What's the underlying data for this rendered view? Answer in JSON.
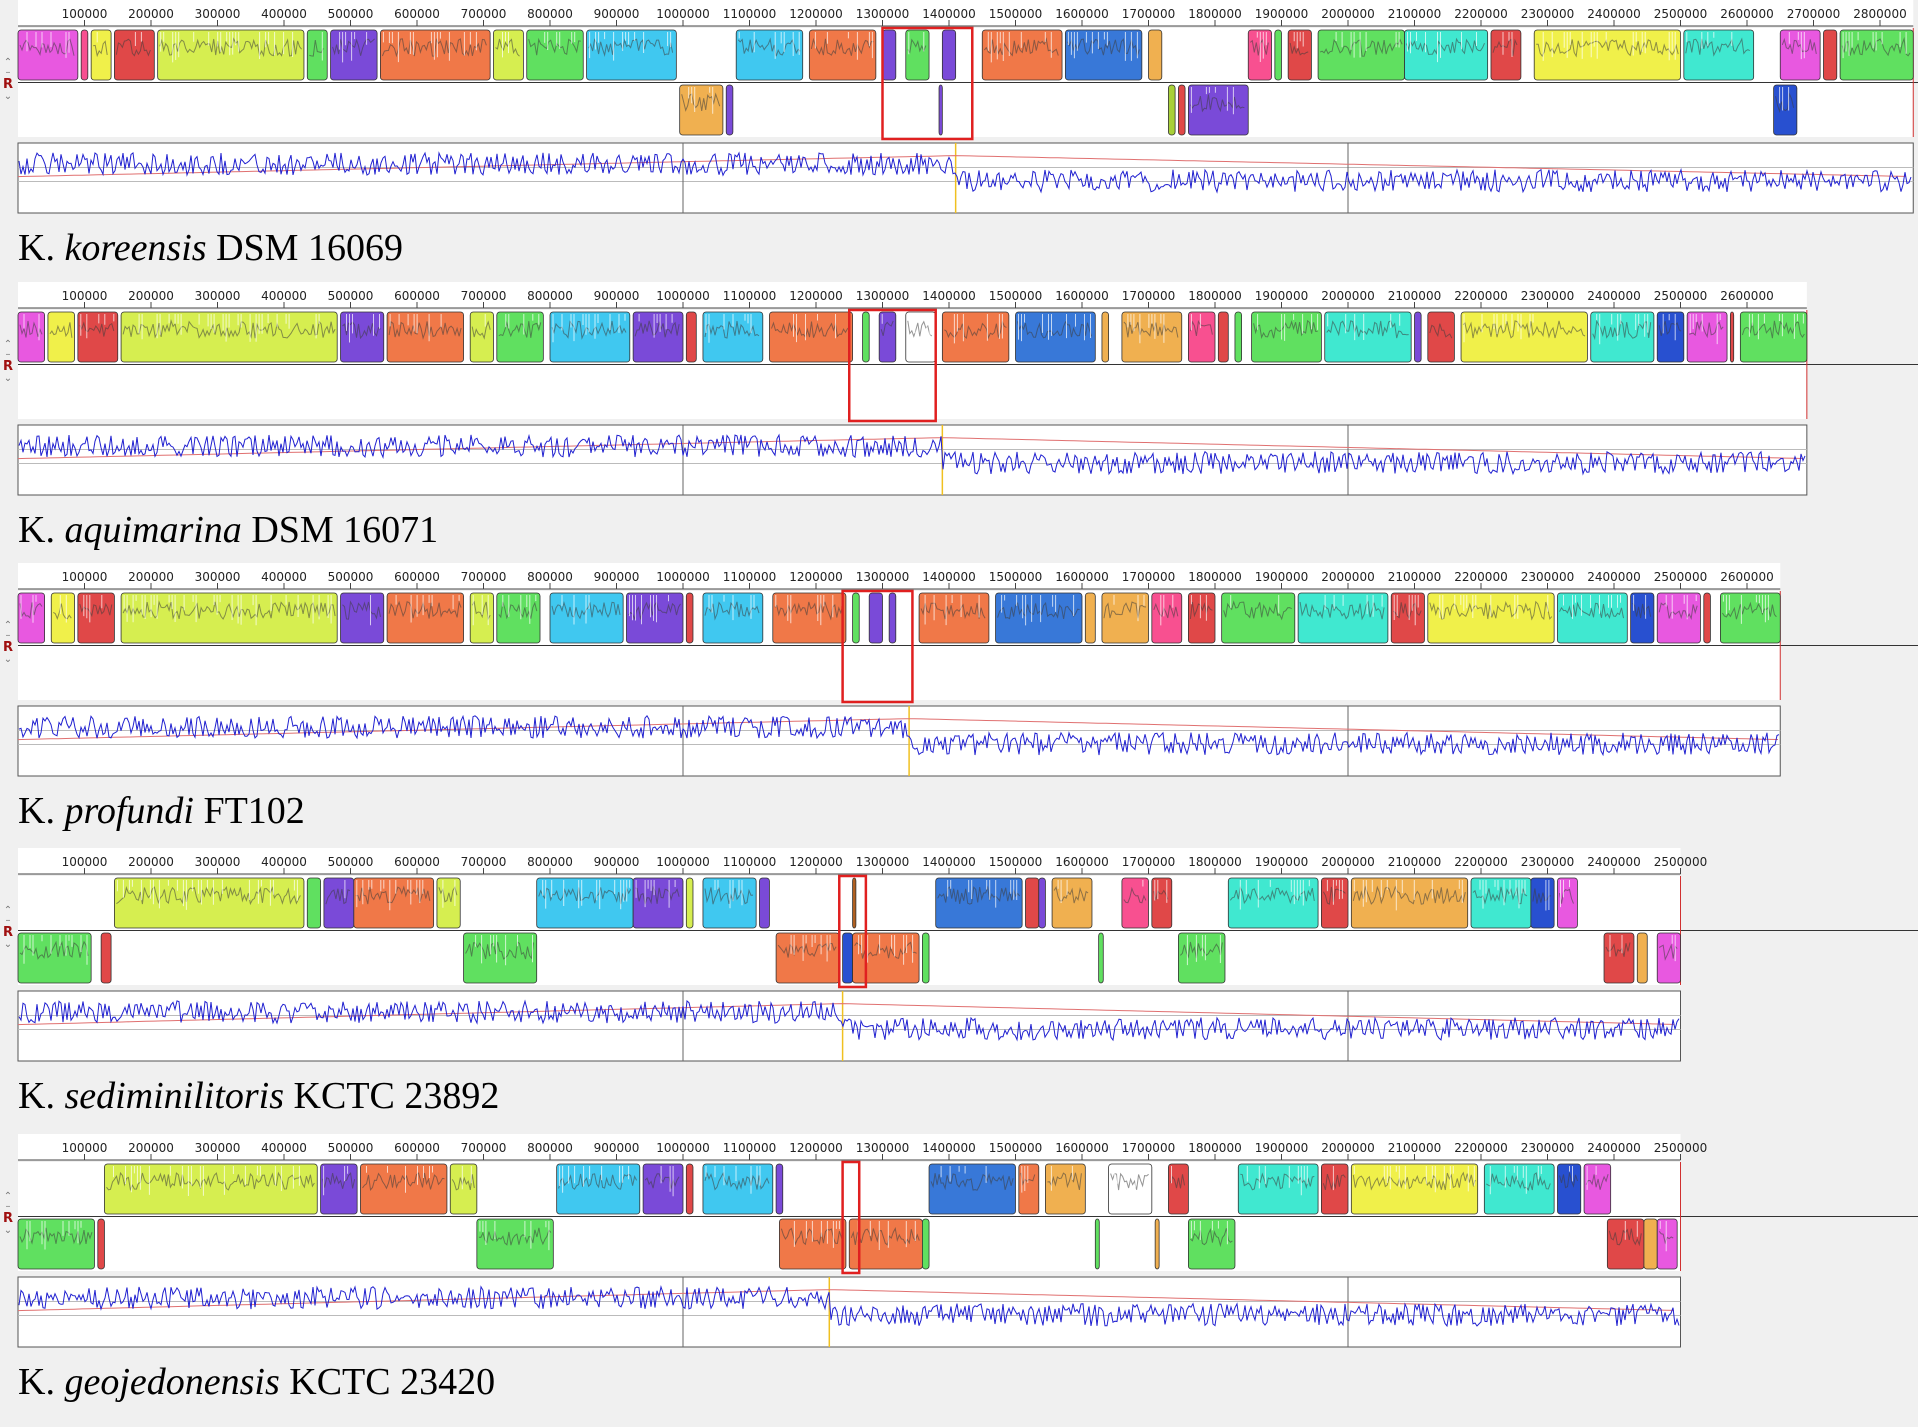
{
  "ui": {
    "reverse_label": "R",
    "up_glyph": "⌃",
    "minus_glyph": "–",
    "down_glyph": "⌄"
  },
  "chart_data": {
    "type": "genome-alignment",
    "palette": {
      "magenta": "#e858e0",
      "yellow": "#f0f04a",
      "red": "#e04848",
      "lime": "#d6ee50",
      "purple": "#7a4ad8",
      "orange": "#f07848",
      "green": "#60e060",
      "cyan": "#40c8f0",
      "blue": "#3878d8",
      "gold": "#f0b050",
      "teal": "#40e8d0",
      "olive": "#a8d038",
      "pink": "#f85090",
      "white": "#ffffff",
      "darkred": "#c02020",
      "brown": "#b06020",
      "navy": "#2850d0"
    },
    "tick_values": [
      100000,
      200000,
      300000,
      400000,
      500000,
      600000,
      700000,
      800000,
      900000,
      1000000,
      1100000,
      1200000,
      1300000,
      1400000,
      1500000,
      1600000,
      1700000,
      1800000,
      1900000,
      2000000,
      2100000,
      2200000,
      2300000,
      2400000,
      2500000,
      2600000,
      2700000,
      2800000
    ],
    "genomes": [
      {
        "genus": "K.",
        "species": "koreensis",
        "strain": "DSM 16069",
        "length": 2850000,
        "highlight": [
          1300000,
          1435000
        ],
        "marker": 1410000,
        "blocks_forward": [
          [
            0,
            90000,
            "magenta"
          ],
          [
            95000,
            105000,
            "pink"
          ],
          [
            110000,
            140000,
            "yellow"
          ],
          [
            145000,
            205000,
            "red"
          ],
          [
            210000,
            430000,
            "lime"
          ],
          [
            435000,
            465000,
            "green"
          ],
          [
            470000,
            540000,
            "purple"
          ],
          [
            545000,
            710000,
            "orange"
          ],
          [
            715000,
            760000,
            "lime"
          ],
          [
            765000,
            850000,
            "green"
          ],
          [
            855000,
            990000,
            "cyan"
          ],
          [
            1080000,
            1180000,
            "cyan"
          ],
          [
            1190000,
            1290000,
            "orange"
          ],
          [
            1300000,
            1320000,
            "purple"
          ],
          [
            1335000,
            1370000,
            "green"
          ],
          [
            1390000,
            1410000,
            "purple"
          ],
          [
            1450000,
            1570000,
            "orange"
          ],
          [
            1575000,
            1690000,
            "blue"
          ],
          [
            1700000,
            1720000,
            "gold"
          ],
          [
            1850000,
            1885000,
            "pink"
          ],
          [
            1890000,
            1900000,
            "green"
          ],
          [
            1910000,
            1945000,
            "red"
          ],
          [
            1955000,
            2085000,
            "green"
          ],
          [
            2085000,
            2210000,
            "teal"
          ],
          [
            2215000,
            2260000,
            "red"
          ],
          [
            2280000,
            2500000,
            "yellow"
          ],
          [
            2505000,
            2610000,
            "teal"
          ],
          [
            2650000,
            2710000,
            "magenta"
          ],
          [
            2715000,
            2735000,
            "red"
          ],
          [
            2740000,
            2850000,
            "green"
          ]
        ],
        "blocks_reverse": [
          [
            995000,
            1060000,
            "gold"
          ],
          [
            1065000,
            1075000,
            "purple"
          ],
          [
            1385000,
            1390000,
            "purple"
          ],
          [
            1730000,
            1740000,
            "olive"
          ],
          [
            1745000,
            1755000,
            "red"
          ],
          [
            1760000,
            1850000,
            "purple"
          ],
          [
            2640000,
            2675000,
            "navy"
          ]
        ]
      },
      {
        "genus": "K.",
        "species": "aquimarina",
        "strain": "DSM 16071",
        "length": 2690000,
        "highlight": [
          1250000,
          1380000
        ],
        "marker": 1390000,
        "blocks_forward": [
          [
            0,
            40000,
            "magenta"
          ],
          [
            45000,
            85000,
            "yellow"
          ],
          [
            90000,
            150000,
            "red"
          ],
          [
            155000,
            480000,
            "lime"
          ],
          [
            485000,
            550000,
            "purple"
          ],
          [
            555000,
            670000,
            "orange"
          ],
          [
            680000,
            715000,
            "lime"
          ],
          [
            720000,
            790000,
            "green"
          ],
          [
            800000,
            920000,
            "cyan"
          ],
          [
            925000,
            1000000,
            "purple"
          ],
          [
            1005000,
            1020000,
            "red"
          ],
          [
            1030000,
            1120000,
            "cyan"
          ],
          [
            1130000,
            1255000,
            "orange"
          ],
          [
            1270000,
            1280000,
            "green"
          ],
          [
            1295000,
            1320000,
            "purple"
          ],
          [
            1335000,
            1380000,
            "white"
          ],
          [
            1390000,
            1490000,
            "orange"
          ],
          [
            1500000,
            1620000,
            "blue"
          ],
          [
            1630000,
            1640000,
            "gold"
          ],
          [
            1660000,
            1750000,
            "gold"
          ],
          [
            1760000,
            1800000,
            "pink"
          ],
          [
            1805000,
            1820000,
            "red"
          ],
          [
            1830000,
            1840000,
            "green"
          ],
          [
            1855000,
            1960000,
            "green"
          ],
          [
            1965000,
            2095000,
            "teal"
          ],
          [
            2100000,
            2110000,
            "purple"
          ],
          [
            2120000,
            2160000,
            "red"
          ],
          [
            2170000,
            2360000,
            "yellow"
          ],
          [
            2365000,
            2460000,
            "teal"
          ],
          [
            2465000,
            2505000,
            "navy"
          ],
          [
            2510000,
            2570000,
            "magenta"
          ],
          [
            2575000,
            2580000,
            "red"
          ],
          [
            2590000,
            2690000,
            "green"
          ]
        ],
        "blocks_reverse": []
      },
      {
        "genus": "K.",
        "species": "profundi",
        "strain": "FT102",
        "length": 2650000,
        "highlight": [
          1240000,
          1345000
        ],
        "marker": 1340000,
        "blocks_forward": [
          [
            0,
            40000,
            "magenta"
          ],
          [
            50000,
            85000,
            "yellow"
          ],
          [
            90000,
            145000,
            "red"
          ],
          [
            155000,
            480000,
            "lime"
          ],
          [
            485000,
            550000,
            "purple"
          ],
          [
            555000,
            670000,
            "orange"
          ],
          [
            680000,
            715000,
            "lime"
          ],
          [
            720000,
            785000,
            "green"
          ],
          [
            800000,
            910000,
            "cyan"
          ],
          [
            915000,
            1000000,
            "purple"
          ],
          [
            1005000,
            1015000,
            "red"
          ],
          [
            1030000,
            1120000,
            "cyan"
          ],
          [
            1135000,
            1245000,
            "orange"
          ],
          [
            1255000,
            1265000,
            "green"
          ],
          [
            1280000,
            1300000,
            "purple"
          ],
          [
            1310000,
            1320000,
            "purple"
          ],
          [
            1355000,
            1460000,
            "orange"
          ],
          [
            1470000,
            1600000,
            "blue"
          ],
          [
            1605000,
            1620000,
            "gold"
          ],
          [
            1630000,
            1700000,
            "gold"
          ],
          [
            1705000,
            1750000,
            "pink"
          ],
          [
            1760000,
            1800000,
            "red"
          ],
          [
            1810000,
            1920000,
            "green"
          ],
          [
            1925000,
            2060000,
            "teal"
          ],
          [
            2065000,
            2115000,
            "red"
          ],
          [
            2120000,
            2310000,
            "yellow"
          ],
          [
            2315000,
            2420000,
            "teal"
          ],
          [
            2425000,
            2460000,
            "navy"
          ],
          [
            2465000,
            2530000,
            "magenta"
          ],
          [
            2535000,
            2545000,
            "red"
          ],
          [
            2560000,
            2650000,
            "green"
          ]
        ],
        "blocks_reverse": []
      },
      {
        "genus": "K.",
        "species": "sediminilitoris",
        "strain": "KCTC 23892",
        "length": 2500000,
        "highlight": [
          1235000,
          1275000
        ],
        "marker": 1240000,
        "blocks_forward": [
          [
            145000,
            430000,
            "lime"
          ],
          [
            435000,
            455000,
            "green"
          ],
          [
            460000,
            505000,
            "purple"
          ],
          [
            505000,
            625000,
            "orange"
          ],
          [
            630000,
            665000,
            "lime"
          ],
          [
            780000,
            925000,
            "cyan"
          ],
          [
            925000,
            1000000,
            "purple"
          ],
          [
            1005000,
            1015000,
            "lime"
          ],
          [
            1030000,
            1110000,
            "cyan"
          ],
          [
            1115000,
            1130000,
            "purple"
          ],
          [
            1255000,
            1260000,
            "brown"
          ],
          [
            1380000,
            1510000,
            "blue"
          ],
          [
            1515000,
            1535000,
            "red"
          ],
          [
            1535000,
            1545000,
            "purple"
          ],
          [
            1555000,
            1615000,
            "gold"
          ],
          [
            1660000,
            1700000,
            "pink"
          ],
          [
            1705000,
            1735000,
            "red"
          ],
          [
            1820000,
            1955000,
            "teal"
          ],
          [
            1960000,
            2000000,
            "red"
          ],
          [
            2005000,
            2180000,
            "gold"
          ],
          [
            2185000,
            2275000,
            "teal"
          ],
          [
            2275000,
            2310000,
            "navy"
          ],
          [
            2315000,
            2345000,
            "magenta"
          ]
        ],
        "blocks_reverse": [
          [
            0,
            110000,
            "green"
          ],
          [
            125000,
            140000,
            "red"
          ],
          [
            670000,
            780000,
            "green"
          ],
          [
            1140000,
            1235000,
            "orange"
          ],
          [
            1240000,
            1255000,
            "navy"
          ],
          [
            1255000,
            1355000,
            "orange"
          ],
          [
            1360000,
            1370000,
            "green"
          ],
          [
            1625000,
            1632000,
            "green"
          ],
          [
            1745000,
            1815000,
            "green"
          ],
          [
            2385000,
            2430000,
            "red"
          ],
          [
            2435000,
            2450000,
            "gold"
          ],
          [
            2465000,
            2500000,
            "magenta"
          ]
        ]
      },
      {
        "genus": "K.",
        "species": "geojedonensis",
        "strain": "KCTC 23420",
        "length": 2500000,
        "highlight": [
          1240000,
          1265000
        ],
        "marker": 1220000,
        "blocks_forward": [
          [
            130000,
            450000,
            "lime"
          ],
          [
            455000,
            510000,
            "purple"
          ],
          [
            515000,
            645000,
            "orange"
          ],
          [
            650000,
            690000,
            "lime"
          ],
          [
            810000,
            935000,
            "cyan"
          ],
          [
            940000,
            1000000,
            "purple"
          ],
          [
            1005000,
            1015000,
            "red"
          ],
          [
            1030000,
            1135000,
            "cyan"
          ],
          [
            1140000,
            1150000,
            "purple"
          ],
          [
            1370000,
            1500000,
            "blue"
          ],
          [
            1505000,
            1535000,
            "orange"
          ],
          [
            1545000,
            1605000,
            "gold"
          ],
          [
            1640000,
            1705000,
            "white"
          ],
          [
            1730000,
            1760000,
            "red"
          ],
          [
            1835000,
            1955000,
            "teal"
          ],
          [
            1960000,
            2000000,
            "red"
          ],
          [
            2005000,
            2195000,
            "yellow"
          ],
          [
            2205000,
            2310000,
            "teal"
          ],
          [
            2315000,
            2350000,
            "navy"
          ],
          [
            2355000,
            2395000,
            "magenta"
          ]
        ],
        "blocks_reverse": [
          [
            0,
            115000,
            "green"
          ],
          [
            120000,
            130000,
            "red"
          ],
          [
            690000,
            805000,
            "green"
          ],
          [
            1145000,
            1245000,
            "orange"
          ],
          [
            1250000,
            1360000,
            "orange"
          ],
          [
            1360000,
            1370000,
            "green"
          ],
          [
            1620000,
            1626000,
            "green"
          ],
          [
            1710000,
            1716000,
            "gold"
          ],
          [
            1760000,
            1830000,
            "green"
          ],
          [
            2390000,
            2445000,
            "red"
          ],
          [
            2445000,
            2465000,
            "gold"
          ],
          [
            2465000,
            2495000,
            "magenta"
          ]
        ]
      }
    ]
  }
}
